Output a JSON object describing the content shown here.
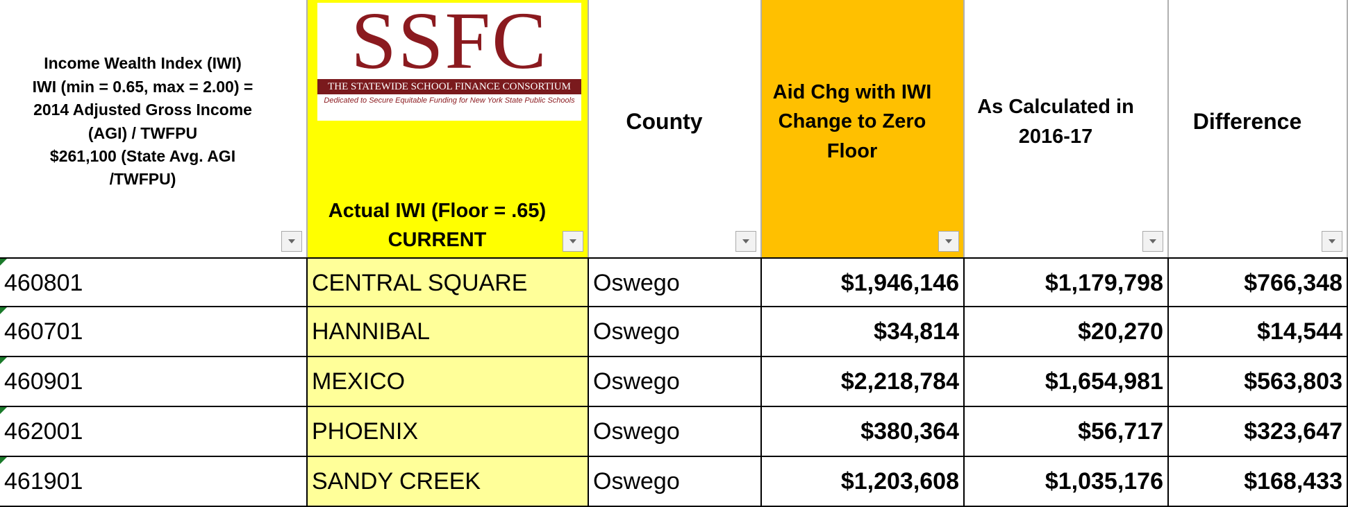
{
  "logo": {
    "title": "SSFC",
    "name": "THE STATEWIDE SCHOOL FINANCE CONSORTIUM",
    "tagline": "Dedicated to Secure Equitable Funding for New York State Public Schools"
  },
  "header": [
    {
      "lines": [
        "Income Wealth Index (IWI)",
        "IWI (min = 0.65, max = 2.00) =",
        "2014 Adjusted Gross Income",
        "(AGI) / TWFPU",
        "$261,100 (State Avg. AGI",
        "/TWFPU)"
      ]
    },
    {
      "lines": [
        "Actual IWI (Floor = .65)",
        "CURRENT"
      ]
    },
    {
      "lines": [
        "County"
      ]
    },
    {
      "lines": [
        "Aid Chg with IWI",
        "Change to Zero",
        "Floor"
      ]
    },
    {
      "lines": [
        "As Calculated  in",
        "2016-17"
      ]
    },
    {
      "lines": [
        "Difference"
      ]
    }
  ],
  "rows": [
    [
      "460801",
      "CENTRAL SQUARE",
      "Oswego",
      "$1,946,146",
      "$1,179,798",
      "$766,348"
    ],
    [
      "460701",
      "HANNIBAL",
      "Oswego",
      "$34,814",
      "$20,270",
      "$14,544"
    ],
    [
      "460901",
      "MEXICO",
      "Oswego",
      "$2,218,784",
      "$1,654,981",
      "$563,803"
    ],
    [
      "462001",
      "PHOENIX",
      "Oswego",
      "$380,364",
      "$56,717",
      "$323,647"
    ],
    [
      "461901",
      "SANDY CREEK",
      "Oswego",
      "$1,203,608",
      "$1,035,176",
      "$168,433"
    ]
  ]
}
